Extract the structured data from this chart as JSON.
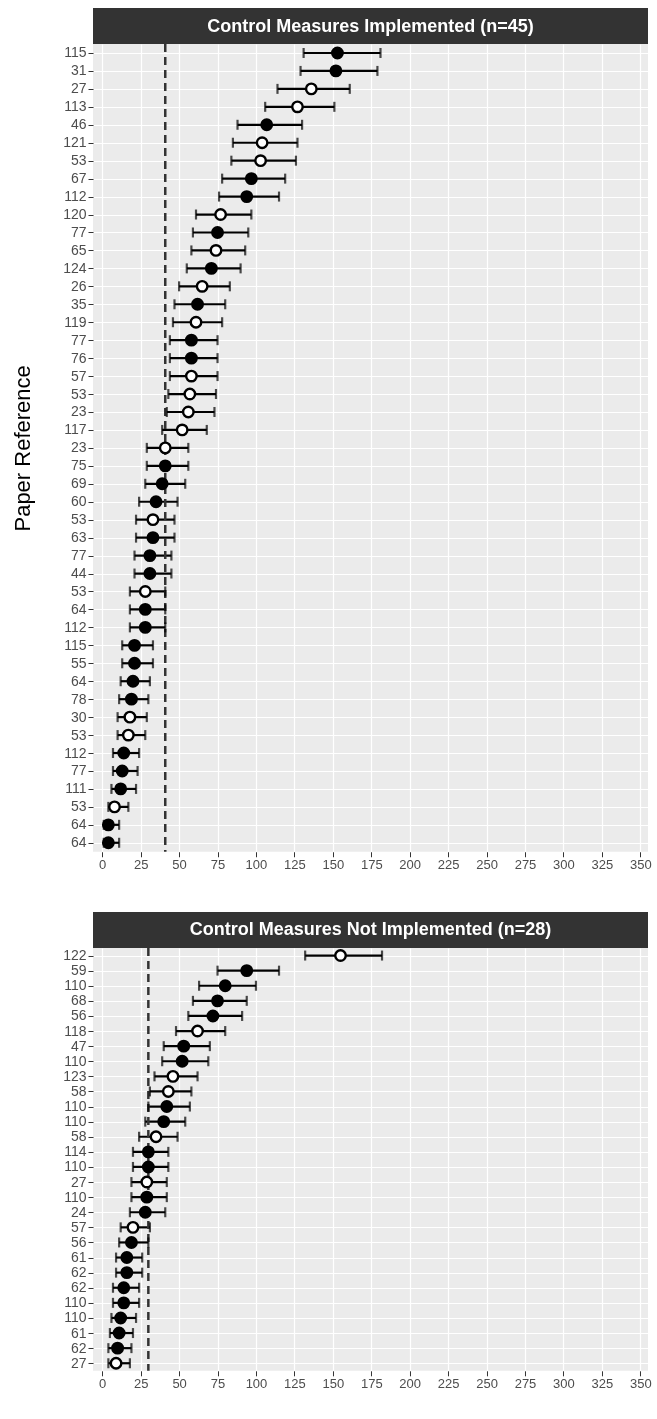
{
  "chart_data": [
    {
      "type": "scatter",
      "orientation": "horizontal",
      "title": "Control Measures Implemented (n=45)",
      "ylabel": "Paper Reference",
      "categories": [
        "115",
        "31",
        "27",
        "113",
        "46",
        "121",
        "53",
        "67",
        "112",
        "120",
        "77",
        "65",
        "124",
        "26",
        "35",
        "119",
        "77",
        "76",
        "57",
        "53",
        "23",
        "117",
        "23",
        "75",
        "69",
        "60",
        "53",
        "63",
        "77",
        "44",
        "53",
        "64",
        "112",
        "115",
        "55",
        "64",
        "78",
        "30",
        "53",
        "112",
        "77",
        "111",
        "53",
        "64",
        "64"
      ],
      "series": [
        {
          "color": "#000000",
          "values": [
            153,
            152,
            null,
            null,
            107,
            null,
            null,
            97,
            94,
            null,
            75,
            null,
            71,
            null,
            62,
            null,
            58,
            58,
            null,
            null,
            null,
            null,
            null,
            41,
            39,
            35,
            null,
            33,
            31,
            31,
            null,
            28,
            28,
            21,
            21,
            20,
            19,
            null,
            null,
            14,
            13,
            12,
            null,
            4,
            4
          ],
          "errors": [
            [
              131,
              181
            ],
            [
              129,
              179
            ],
            null,
            null,
            [
              88,
              130
            ],
            null,
            null,
            [
              78,
              119
            ],
            [
              76,
              115
            ],
            null,
            [
              59,
              95
            ],
            null,
            [
              55,
              90
            ],
            null,
            [
              47,
              80
            ],
            null,
            [
              44,
              75
            ],
            [
              44,
              75
            ],
            null,
            null,
            null,
            null,
            null,
            [
              29,
              56
            ],
            [
              28,
              54
            ],
            [
              24,
              49
            ],
            null,
            [
              22,
              47
            ],
            [
              21,
              45
            ],
            [
              21,
              45
            ],
            null,
            [
              18,
              41
            ],
            [
              18,
              41
            ],
            [
              13,
              33
            ],
            [
              13,
              33
            ],
            [
              12,
              31
            ],
            [
              11,
              30
            ],
            null,
            null,
            [
              7,
              24
            ],
            [
              7,
              23
            ],
            [
              6,
              22
            ],
            null,
            [
              1,
              11
            ],
            [
              1,
              11
            ]
          ]
        },
        {
          "color": "#ffffff",
          "values": [
            null,
            null,
            136,
            127,
            null,
            104,
            103,
            null,
            null,
            77,
            null,
            74,
            null,
            65,
            null,
            61,
            null,
            null,
            58,
            57,
            56,
            52,
            41,
            null,
            null,
            null,
            33,
            null,
            null,
            null,
            28,
            null,
            null,
            null,
            null,
            null,
            null,
            18,
            17,
            null,
            null,
            null,
            8,
            null,
            null
          ],
          "errors": [
            null,
            null,
            [
              114,
              161
            ],
            [
              106,
              151
            ],
            null,
            [
              85,
              127
            ],
            [
              84,
              126
            ],
            null,
            null,
            [
              61,
              97
            ],
            null,
            [
              58,
              93
            ],
            null,
            [
              50,
              83
            ],
            null,
            [
              46,
              78
            ],
            null,
            null,
            [
              44,
              75
            ],
            [
              43,
              74
            ],
            [
              42,
              73
            ],
            [
              39,
              68
            ],
            [
              29,
              56
            ],
            null,
            null,
            null,
            [
              22,
              47
            ],
            null,
            null,
            null,
            [
              18,
              41
            ],
            null,
            null,
            null,
            null,
            null,
            null,
            [
              10,
              29
            ],
            [
              10,
              28
            ],
            null,
            null,
            null,
            [
              4,
              17
            ],
            null,
            null
          ]
        }
      ],
      "xlim": [
        -6,
        355
      ],
      "xticks": [
        0,
        25,
        50,
        75,
        100,
        125,
        150,
        175,
        200,
        225,
        250,
        275,
        300,
        325,
        350
      ],
      "ref_lines": [
        {
          "axis": "x",
          "value": 41,
          "line_style": "dashed",
          "color": "#333333"
        }
      ],
      "grid": true,
      "marker": "circle"
    },
    {
      "type": "scatter",
      "orientation": "horizontal",
      "title": "Control Measures Not Implemented (n=28)",
      "categories": [
        "122",
        "59",
        "110",
        "68",
        "56",
        "118",
        "47",
        "110",
        "123",
        "58",
        "110",
        "110",
        "58",
        "114",
        "110",
        "27",
        "110",
        "24",
        "57",
        "56",
        "61",
        "62",
        "62",
        "110",
        "110",
        "61",
        "62",
        "27"
      ],
      "series": [
        {
          "color": "#000000",
          "values": [
            null,
            94,
            80,
            75,
            72,
            null,
            53,
            52,
            null,
            null,
            42,
            40,
            null,
            30,
            30,
            null,
            29,
            28,
            null,
            19,
            16,
            16,
            14,
            14,
            12,
            11,
            10,
            null
          ],
          "errors": [
            null,
            [
              75,
              115
            ],
            [
              63,
              100
            ],
            [
              59,
              94
            ],
            [
              56,
              91
            ],
            null,
            [
              40,
              70
            ],
            [
              39,
              69
            ],
            null,
            null,
            [
              30,
              57
            ],
            [
              28,
              54
            ],
            null,
            [
              20,
              43
            ],
            [
              20,
              43
            ],
            null,
            [
              19,
              42
            ],
            [
              18,
              41
            ],
            null,
            [
              11,
              30
            ],
            [
              9,
              26
            ],
            [
              9,
              26
            ],
            [
              7,
              24
            ],
            [
              7,
              24
            ],
            [
              6,
              22
            ],
            [
              5,
              20
            ],
            [
              4,
              19
            ],
            null
          ]
        },
        {
          "color": "#ffffff",
          "values": [
            155,
            null,
            null,
            null,
            null,
            62,
            null,
            null,
            46,
            43,
            null,
            null,
            35,
            null,
            null,
            29,
            null,
            null,
            20,
            null,
            null,
            null,
            null,
            null,
            null,
            null,
            null,
            9
          ],
          "errors": [
            [
              132,
              182
            ],
            null,
            null,
            null,
            null,
            [
              48,
              80
            ],
            null,
            null,
            [
              34,
              62
            ],
            [
              31,
              58
            ],
            null,
            null,
            [
              24,
              49
            ],
            null,
            null,
            [
              19,
              42
            ],
            null,
            null,
            [
              12,
              31
            ],
            null,
            null,
            null,
            null,
            null,
            null,
            null,
            null,
            [
              4,
              18
            ]
          ]
        }
      ],
      "xlim": [
        -6,
        355
      ],
      "xticks": [
        0,
        25,
        50,
        75,
        100,
        125,
        150,
        175,
        200,
        225,
        250,
        275,
        300,
        325,
        350
      ],
      "ref_lines": [
        {
          "axis": "x",
          "value": 30,
          "line_style": "dashed",
          "color": "#333333"
        }
      ],
      "grid": true,
      "marker": "circle"
    }
  ]
}
